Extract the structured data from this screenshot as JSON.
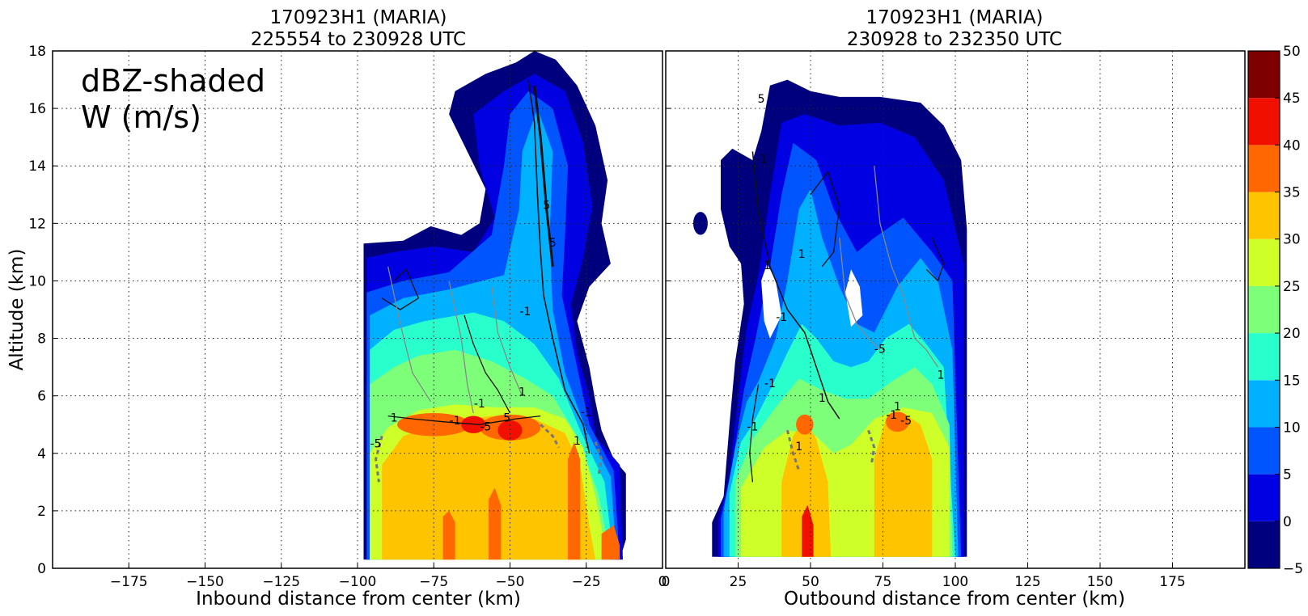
{
  "chart_data": [
    {
      "type": "heatmap",
      "title": "170923H1 (MARIA)",
      "subtitle": "225554 to 230928 UTC",
      "xlabel": "Inbound distance from center (km)",
      "ylabel": "Altitude (km)",
      "xlim": [
        -200,
        0
      ],
      "ylim": [
        0,
        18
      ],
      "xticks": [
        -175,
        -150,
        -125,
        -100,
        -75,
        -50,
        -25,
        0
      ],
      "yticks": [
        0,
        2,
        4,
        6,
        8,
        10,
        12,
        14,
        16,
        18
      ],
      "grid": true,
      "annotation": [
        "dBZ-shaded",
        "W (m/s)"
      ],
      "field": "reflectivity (dBZ) shaded, vertical velocity W (m/s) contoured",
      "contour_labels": [
        "-1",
        "1",
        "5",
        "-5",
        "-1",
        "1",
        "-1",
        "5",
        "-1",
        "1",
        "-5",
        "5"
      ]
    },
    {
      "type": "heatmap",
      "title": "170923H1 (MARIA)",
      "subtitle": "230928 to 232350 UTC",
      "xlabel": "Outbound distance from center (km)",
      "xlim": [
        0,
        200
      ],
      "ylim": [
        0,
        18
      ],
      "xticks": [
        0,
        25,
        50,
        75,
        100,
        125,
        150,
        175
      ],
      "grid": true,
      "contour_labels": [
        "5",
        "-1",
        "1",
        "-1",
        "1",
        "1",
        "-1",
        "-1",
        "-5",
        "1",
        "-5",
        "1",
        "-1",
        "1"
      ]
    }
  ],
  "colorbar": {
    "ticks": [
      -5,
      0,
      5,
      10,
      15,
      20,
      25,
      30,
      35,
      40,
      45,
      50
    ],
    "colors": [
      "#00007f",
      "#0000e3",
      "#0055ff",
      "#00b1ff",
      "#29ffcd",
      "#7dff7a",
      "#ceff29",
      "#ffc400",
      "#ff6700",
      "#f10f00",
      "#7f0000"
    ]
  }
}
